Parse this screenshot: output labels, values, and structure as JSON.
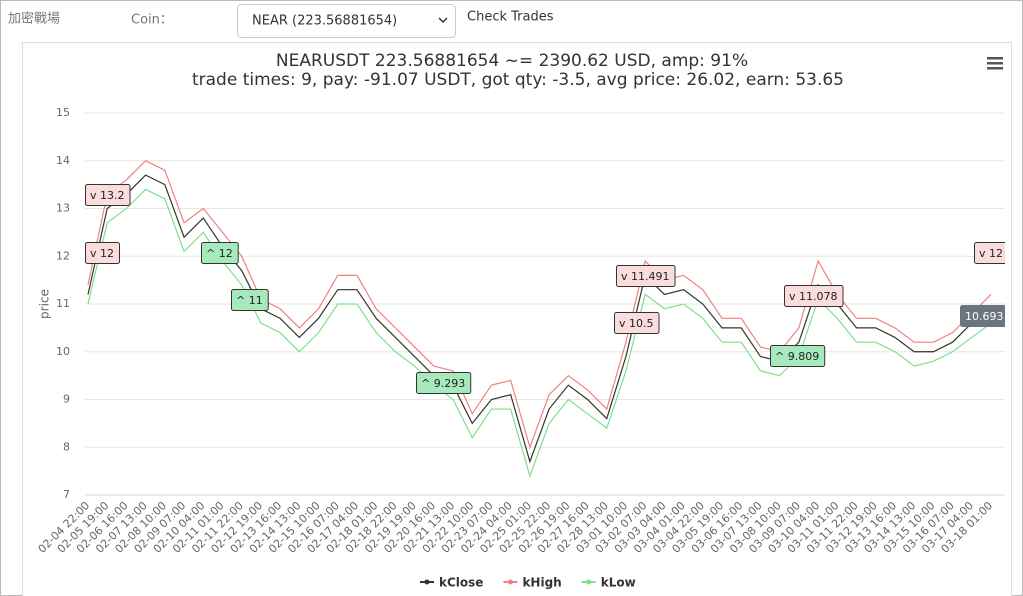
{
  "ui": {
    "brand": "加密戰場",
    "coin_label": "Coin：",
    "coin_select": "NEAR (223.56881654)",
    "button": "Check Trades"
  },
  "chart_data": {
    "type": "line",
    "title": "NEARUSDT 223.56881654 ~= 2390.62 USD, amp: 91%",
    "subtitle": "trade times: 9, pay: -91.07 USDT, got qty: -3.5, avg price: 26.02, earn: 53.65",
    "y_label": "price",
    "categories": [
      "02-04 22:00",
      "02-05 19:00",
      "02-06 16:00",
      "02-07 13:00",
      "02-08 10:00",
      "02-09 07:00",
      "02-10 04:00",
      "02-11 01:00",
      "02-11 22:00",
      "02-12 19:00",
      "02-13 16:00",
      "02-14 13:00",
      "02-15 10:00",
      "02-16 07:00",
      "02-17 04:00",
      "02-18 01:00",
      "02-18 22:00",
      "02-19 19:00",
      "02-20 16:00",
      "02-21 13:00",
      "02-22 10:00",
      "02-23 07:00",
      "02-24 04:00",
      "02-25 01:00",
      "02-25 22:00",
      "02-26 19:00",
      "02-27 16:00",
      "02-28 13:00",
      "03-01 10:00",
      "03-02 07:00",
      "03-03 04:00",
      "03-04 01:00",
      "03-04 22:00",
      "03-05 19:00",
      "03-06 16:00",
      "03-07 13:00",
      "03-08 10:00",
      "03-09 07:00",
      "03-10 04:00",
      "03-11 01:00",
      "03-11 22:00",
      "03-12 19:00",
      "03-13 16:00",
      "03-14 13:00",
      "03-15 10:00",
      "03-16 07:00",
      "03-17 04:00",
      "03-18 01:00"
    ],
    "series": [
      {
        "name": "kClose",
        "color": "#333333",
        "values": [
          11.2,
          13.0,
          13.3,
          13.7,
          13.5,
          12.4,
          12.8,
          12.2,
          11.7,
          10.9,
          10.7,
          10.3,
          10.7,
          11.3,
          11.3,
          10.7,
          10.3,
          9.9,
          9.5,
          9.3,
          8.5,
          9.0,
          9.1,
          7.7,
          8.8,
          9.3,
          9.0,
          8.6,
          9.9,
          11.6,
          11.2,
          11.3,
          11.0,
          10.5,
          10.5,
          9.9,
          9.8,
          10.2,
          11.4,
          11.0,
          10.5,
          10.5,
          10.3,
          10.0,
          10.0,
          10.2,
          10.6,
          10.8
        ]
      },
      {
        "name": "kHigh",
        "color": "#f08080",
        "values": [
          11.4,
          13.3,
          13.6,
          14.0,
          13.8,
          12.7,
          13.0,
          12.5,
          12.0,
          11.1,
          10.9,
          10.5,
          10.9,
          11.6,
          11.6,
          10.9,
          10.5,
          10.1,
          9.7,
          9.6,
          8.7,
          9.3,
          9.4,
          8.0,
          9.1,
          9.5,
          9.2,
          8.8,
          10.2,
          11.9,
          11.5,
          11.6,
          11.3,
          10.7,
          10.7,
          10.1,
          10.0,
          10.5,
          11.9,
          11.2,
          10.7,
          10.7,
          10.5,
          10.2,
          10.2,
          10.4,
          10.8,
          11.2
        ]
      },
      {
        "name": "kLow",
        "color": "#7ee08a",
        "values": [
          11.0,
          12.7,
          13.0,
          13.4,
          13.2,
          12.1,
          12.5,
          11.9,
          11.4,
          10.6,
          10.4,
          10.0,
          10.4,
          11.0,
          11.0,
          10.4,
          10.0,
          9.7,
          9.3,
          9.0,
          8.2,
          8.8,
          8.8,
          7.4,
          8.5,
          9.0,
          8.7,
          8.4,
          9.6,
          11.2,
          10.9,
          11.0,
          10.7,
          10.2,
          10.2,
          9.6,
          9.5,
          9.9,
          11.1,
          10.7,
          10.2,
          10.2,
          10.0,
          9.7,
          9.8,
          10.0,
          10.3,
          10.6
        ]
      }
    ],
    "ylim": [
      7,
      15
    ],
    "yticks": [
      7,
      8,
      9,
      10,
      11,
      12,
      13,
      14,
      15
    ],
    "grid": true,
    "legend": "bottom",
    "annotations": [
      {
        "text": "v 13.2",
        "color": "#fadcdc"
      },
      {
        "text": "v 12",
        "color": "#fadcdc"
      },
      {
        "text": "^ 12",
        "color": "#a6e9bd"
      },
      {
        "text": "^ 11",
        "color": "#a6e9bd"
      },
      {
        "text": "^ 9.293",
        "color": "#a6e9bd"
      },
      {
        "text": "v 11.491",
        "color": "#fadcdc"
      },
      {
        "text": "v 10.5",
        "color": "#fadcdc"
      },
      {
        "text": "v 11.078",
        "color": "#fadcdc"
      },
      {
        "text": "^ 9.809",
        "color": "#a6e9bd"
      },
      {
        "text": "v 12",
        "color": "#fadcdc"
      },
      {
        "text": "10.693",
        "color": "#6b7580"
      }
    ]
  }
}
